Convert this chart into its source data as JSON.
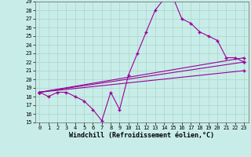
{
  "title": "",
  "xlabel": "Windchill (Refroidissement éolien,°C)",
  "bg_color": "#c8ede8",
  "grid_color": "#aad4cc",
  "line_color": "#990099",
  "xlim": [
    -0.5,
    23.5
  ],
  "ylim": [
    15,
    29
  ],
  "yticks": [
    15,
    16,
    17,
    18,
    19,
    20,
    21,
    22,
    23,
    24,
    25,
    26,
    27,
    28,
    29
  ],
  "xticks": [
    0,
    1,
    2,
    3,
    4,
    5,
    6,
    7,
    8,
    9,
    10,
    11,
    12,
    13,
    14,
    15,
    16,
    17,
    18,
    19,
    20,
    21,
    22,
    23
  ],
  "line1_x": [
    0,
    1,
    2,
    3,
    4,
    5,
    6,
    7,
    8,
    9,
    10,
    11,
    12,
    13,
    14,
    15,
    16,
    17,
    18,
    19,
    20,
    21,
    22,
    23
  ],
  "line1_y": [
    18.5,
    18.0,
    18.5,
    18.5,
    18.0,
    17.5,
    16.5,
    15.2,
    18.5,
    16.5,
    20.5,
    23.0,
    25.5,
    28.0,
    29.3,
    29.5,
    27.0,
    26.5,
    25.5,
    25.0,
    24.5,
    22.5,
    22.5,
    22.0
  ],
  "line2_x": [
    0,
    23
  ],
  "line2_y": [
    18.5,
    22.5
  ],
  "line3_x": [
    0,
    23
  ],
  "line3_y": [
    18.5,
    22.0
  ],
  "line4_x": [
    0,
    23
  ],
  "line4_y": [
    18.5,
    21.0
  ],
  "tick_fontsize": 5,
  "xlabel_fontsize": 6
}
